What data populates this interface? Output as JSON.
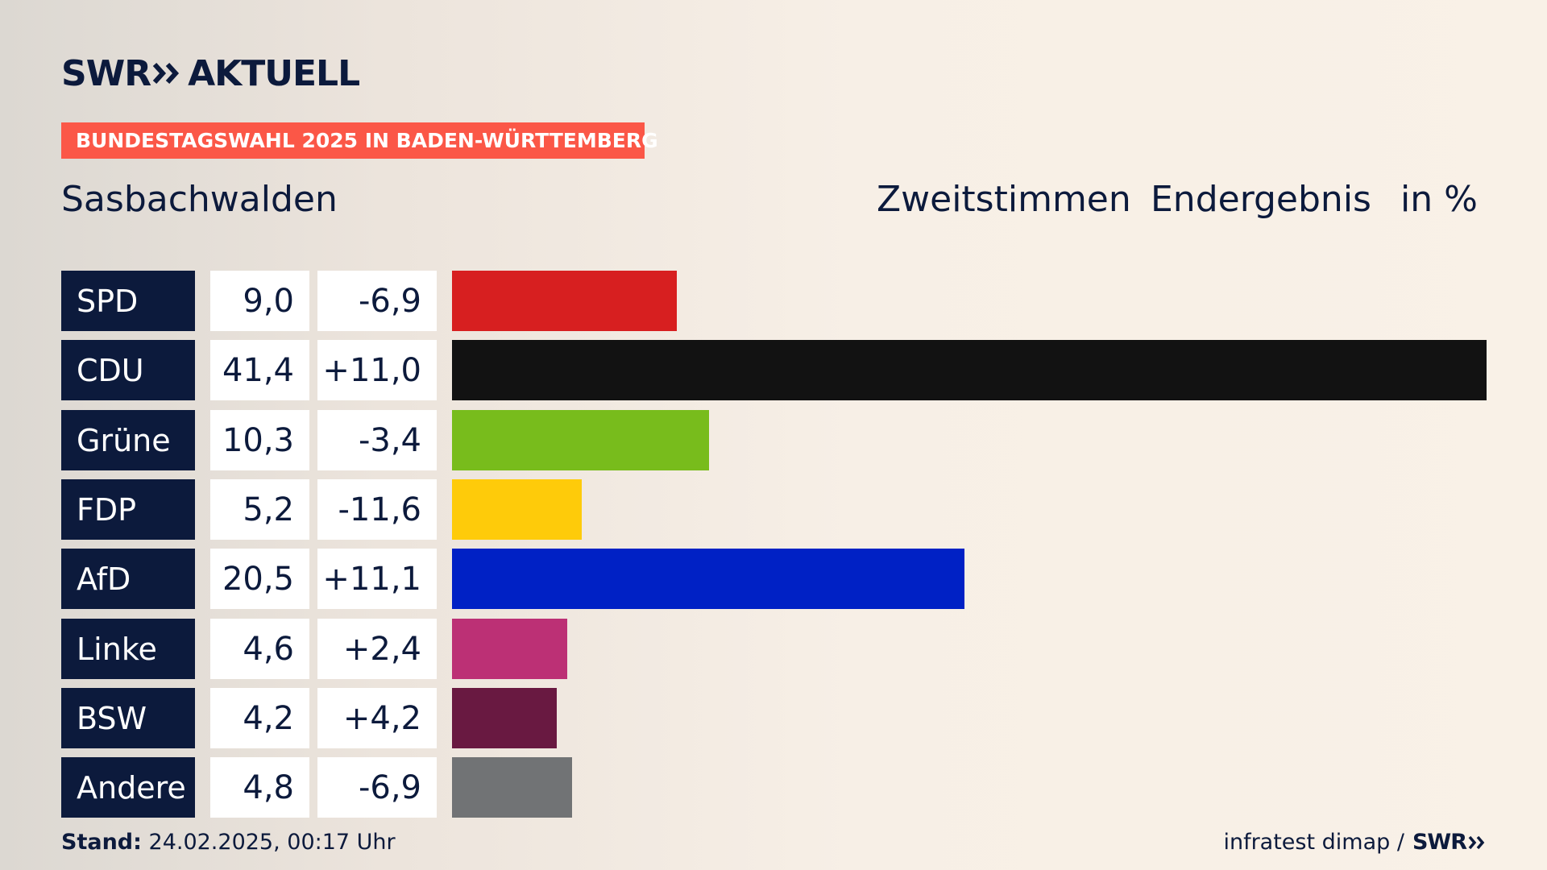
{
  "brand": {
    "logo_swr": "SWR",
    "logo_aktuell": "AKTUELL",
    "footer_swr": "SWR",
    "colors": {
      "navy": "#0c1a3c",
      "banner": "#fb5747"
    }
  },
  "banner": "BUNDESTAGSWAHL 2025 IN BADEN-WÜRTTEMBERG",
  "place": "Sasbachwalden",
  "header": {
    "vote_type": "Zweitstimmen",
    "status": "Endergebnis",
    "unit": "in %"
  },
  "footer": {
    "stand_label": "Stand:",
    "stand_value": "24.02.2025, 00:17 Uhr",
    "source": "infratest dimap /"
  },
  "chart_data": {
    "type": "bar",
    "orientation": "horizontal",
    "unit": "in %",
    "categories": [
      "SPD",
      "CDU",
      "Grüne",
      "FDP",
      "AfD",
      "Linke",
      "BSW",
      "Andere"
    ],
    "values": [
      9.0,
      41.4,
      10.3,
      5.2,
      20.5,
      4.6,
      4.2,
      4.8
    ],
    "value_labels": [
      "9,0",
      "41,4",
      "10,3",
      "5,2",
      "20,5",
      "4,6",
      "4,2",
      "4,8"
    ],
    "diffs": [
      -6.9,
      11.0,
      -3.4,
      -11.6,
      11.1,
      2.4,
      4.2,
      -6.9
    ],
    "diff_labels": [
      "-6,9",
      "+11,0",
      "-3,4",
      "-11,6",
      "+11,1",
      "+2,4",
      "+4,2",
      "-6,9"
    ],
    "colors": [
      "#d71f20",
      "#121212",
      "#78bc1c",
      "#fecb0a",
      "#0021c5",
      "#bc3075",
      "#691941",
      "#717375"
    ],
    "xlim": [
      0,
      41.4
    ]
  }
}
